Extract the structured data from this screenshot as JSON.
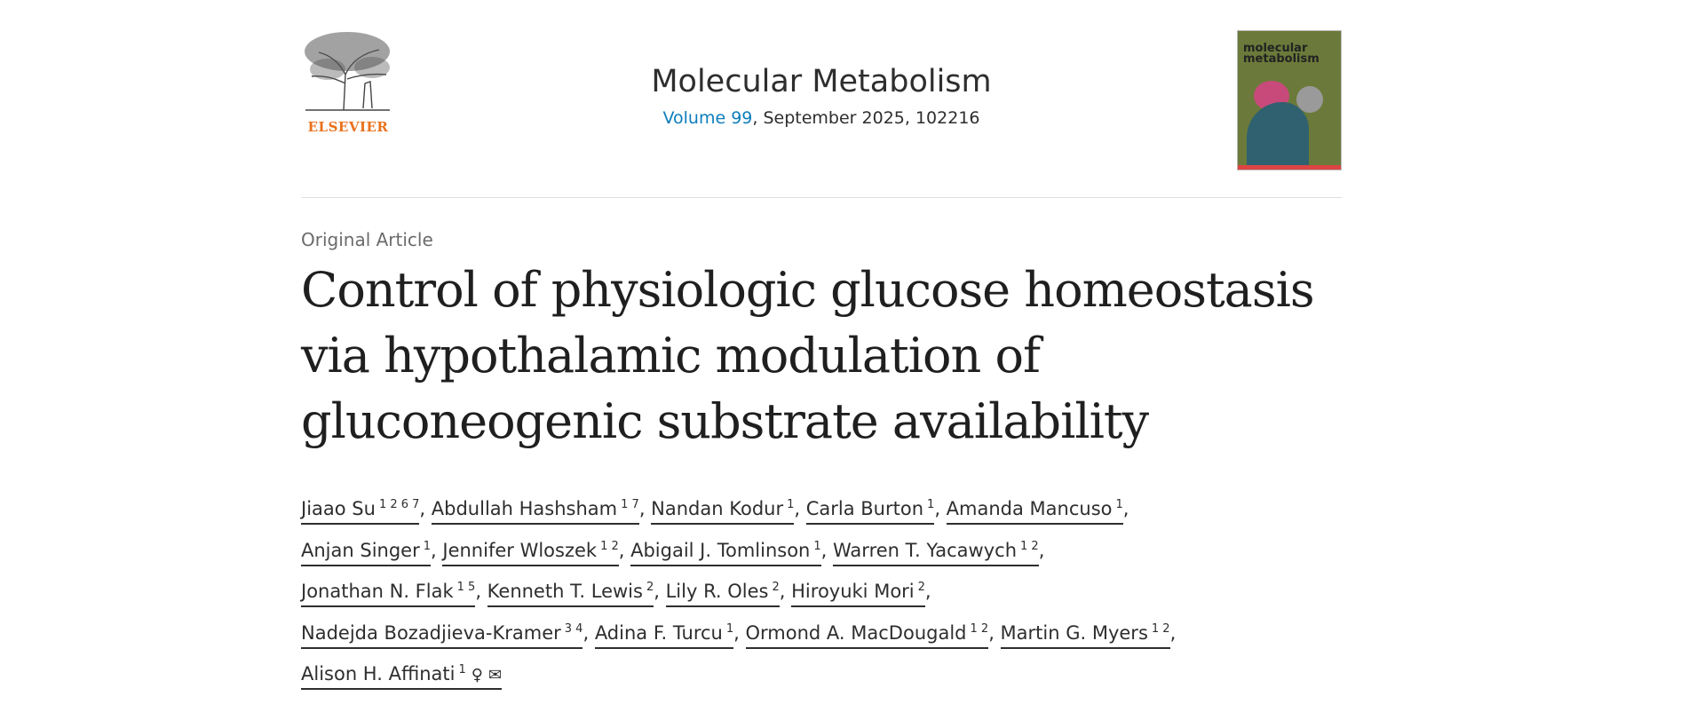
{
  "publisher": {
    "logo_text": "ELSEVIER",
    "logo_color": "#e9711c"
  },
  "journal": {
    "title": "Molecular Metabolism",
    "volume_link": "Volume 99",
    "issue_rest": ", September 2025, 102216",
    "cover_title": "molecular metabolism"
  },
  "article": {
    "type": "Original Article",
    "title_lines": [
      "Control of physiologic glucose homeostasis",
      "via hypothalamic modulation of",
      "gluconeogenic substrate availability"
    ]
  },
  "authors": [
    {
      "name": "Jiaao Su",
      "aff": "1 2 6 7"
    },
    {
      "name": "Abdullah Hashsham",
      "aff": "1 7"
    },
    {
      "name": "Nandan Kodur",
      "aff": "1"
    },
    {
      "name": "Carla Burton",
      "aff": "1"
    },
    {
      "name": "Amanda Mancuso",
      "aff": "1"
    },
    {
      "name": "Anjan Singer",
      "aff": "1"
    },
    {
      "name": "Jennifer Wloszek",
      "aff": "1 2"
    },
    {
      "name": "Abigail J. Tomlinson",
      "aff": "1"
    },
    {
      "name": "Warren T. Yacawych",
      "aff": "1 2"
    },
    {
      "name": "Jonathan N. Flak",
      "aff": "1 5"
    },
    {
      "name": "Kenneth T. Lewis",
      "aff": "2"
    },
    {
      "name": "Lily R. Oles",
      "aff": "2"
    },
    {
      "name": "Hiroyuki Mori",
      "aff": "2"
    },
    {
      "name": "Nadejda Bozadjieva-Kramer",
      "aff": "3 4"
    },
    {
      "name": "Adina F. Turcu",
      "aff": "1"
    },
    {
      "name": "Ormond A. MacDougald",
      "aff": "1 2"
    },
    {
      "name": "Martin G. Myers",
      "aff": "1 2"
    },
    {
      "name": "Alison H. Affinati",
      "aff": "1",
      "icons": [
        "person-icon",
        "envelope-icon"
      ]
    }
  ],
  "line_breaks_after": [
    4,
    8,
    12,
    16
  ]
}
